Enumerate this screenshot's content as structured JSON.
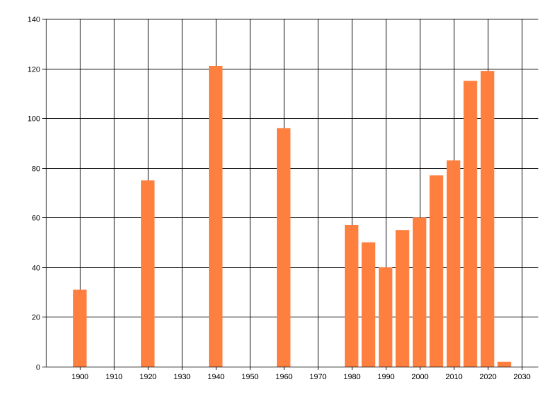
{
  "chart_data": {
    "type": "bar",
    "title": "",
    "xlabel": "",
    "ylabel": "",
    "x": [
      1900,
      1920,
      1940,
      1960,
      1980,
      1985,
      1990,
      1995,
      2000,
      2005,
      2010,
      2015,
      2020,
      2025
    ],
    "values": [
      31,
      75,
      121,
      96,
      57,
      50,
      40,
      55,
      60,
      77,
      83,
      115,
      119,
      2
    ],
    "xlim": [
      1890,
      2035
    ],
    "ylim": [
      0,
      140
    ],
    "xticks": [
      1900,
      1910,
      1920,
      1930,
      1940,
      1950,
      1960,
      1970,
      1980,
      1990,
      2000,
      2010,
      2020,
      2030
    ],
    "yticks": [
      0,
      20,
      40,
      60,
      80,
      100,
      120,
      140
    ],
    "grid": true,
    "legend": "none",
    "bar_color": "#FF7F3F",
    "grid_color": "#000000"
  }
}
